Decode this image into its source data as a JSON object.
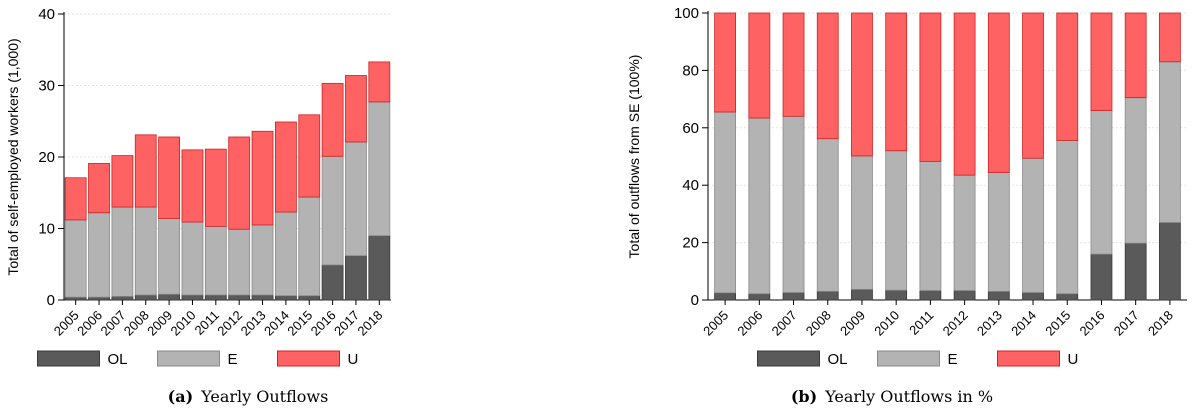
{
  "colors": {
    "OL": "#5a5a5a",
    "E": "#b3b3b3",
    "U": "#ff6262",
    "OL_stroke": "#3a3a3a",
    "E_stroke": "#8a8a8a",
    "U_stroke": "#cc2222",
    "grid": "#e2e2e2"
  },
  "chart_data": [
    {
      "type": "bar",
      "stacked": true,
      "panel": "a",
      "caption_label": "(a)",
      "caption_text": "Yearly Outflows",
      "ylabel": "Total of self-employed workers (1,000)",
      "xlabel": "",
      "ylim": [
        0,
        40
      ],
      "yticks": [
        0,
        10,
        20,
        30,
        40
      ],
      "grid": "horizontal",
      "legend_placement": "bottom",
      "categories": [
        "2005",
        "2006",
        "2007",
        "2008",
        "2009",
        "2010",
        "2011",
        "2012",
        "2013",
        "2014",
        "2015",
        "2016",
        "2017",
        "2018"
      ],
      "series": [
        {
          "name": "OL",
          "values": [
            0.4,
            0.4,
            0.5,
            0.7,
            0.8,
            0.7,
            0.7,
            0.7,
            0.7,
            0.6,
            0.6,
            4.9,
            6.2,
            9.0
          ]
        },
        {
          "name": "E",
          "values": [
            10.8,
            11.8,
            12.5,
            12.3,
            10.6,
            10.2,
            9.6,
            9.2,
            9.8,
            11.7,
            13.8,
            15.2,
            15.9,
            18.7
          ]
        },
        {
          "name": "U",
          "values": [
            5.9,
            6.9,
            7.2,
            10.1,
            11.4,
            10.1,
            10.8,
            12.9,
            13.1,
            12.6,
            11.5,
            10.2,
            9.3,
            5.6
          ]
        }
      ]
    },
    {
      "type": "bar",
      "stacked": true,
      "panel": "b",
      "caption_label": "(b)",
      "caption_text": "Yearly Outflows in %",
      "ylabel": "Total of outflows from SE (100%)",
      "xlabel": "",
      "ylim": [
        0,
        100
      ],
      "yticks": [
        0,
        20,
        40,
        60,
        80,
        100
      ],
      "grid": "horizontal",
      "legend_placement": "bottom",
      "categories": [
        "2005",
        "2006",
        "2007",
        "2008",
        "2009",
        "2010",
        "2011",
        "2012",
        "2013",
        "2014",
        "2015",
        "2016",
        "2017",
        "2018"
      ],
      "series": [
        {
          "name": "OL",
          "values": [
            2.5,
            2.2,
            2.6,
            3.0,
            3.7,
            3.4,
            3.3,
            3.3,
            3.0,
            2.6,
            2.2,
            16.0,
            19.8,
            27.0
          ]
        },
        {
          "name": "E",
          "values": [
            63.0,
            61.2,
            61.4,
            53.2,
            46.5,
            48.6,
            45.0,
            40.2,
            41.4,
            46.8,
            53.4,
            50.0,
            50.7,
            56.0
          ]
        },
        {
          "name": "U",
          "values": [
            34.5,
            36.6,
            36.0,
            43.8,
            49.8,
            48.0,
            51.7,
            56.5,
            55.6,
            50.6,
            44.4,
            34.0,
            29.5,
            17.0
          ]
        }
      ]
    }
  ]
}
